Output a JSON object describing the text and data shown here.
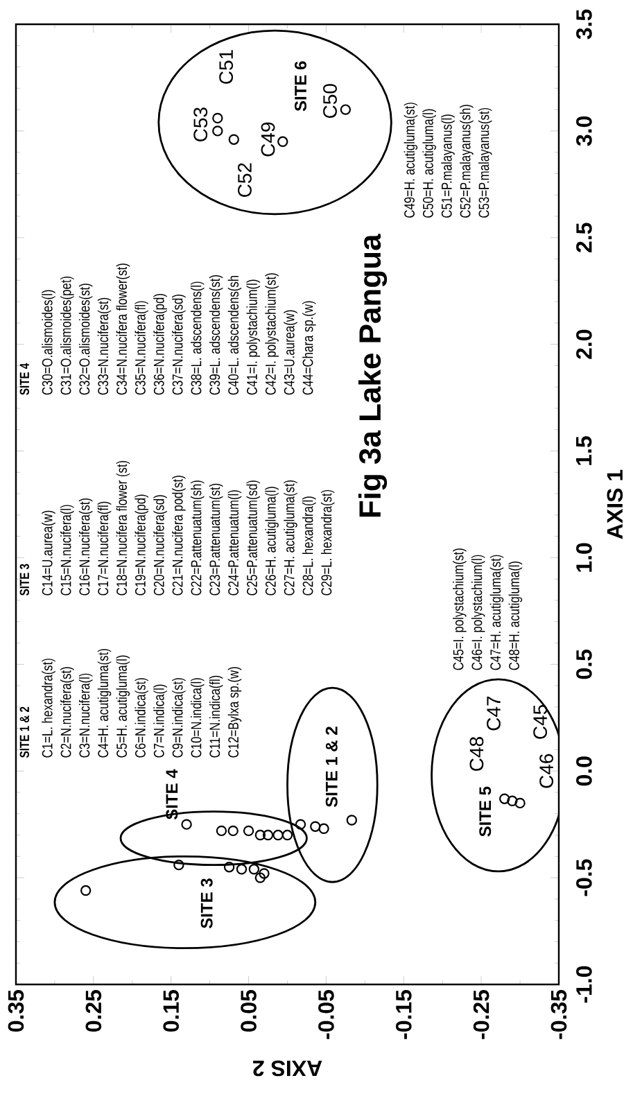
{
  "chart_data": {
    "type": "scatter",
    "title": "Fig 3a Lake Pangua",
    "xlabel": "AXIS 2",
    "ylabel": "AXIS 1",
    "xlim": [
      0.35,
      -0.35
    ],
    "ylim": [
      -1.0,
      3.5
    ],
    "yticks": [
      {
        "value": -1.0,
        "label": "-1.0"
      },
      {
        "value": -0.5,
        "label": "-0.5"
      },
      {
        "value": 0.0,
        "label": "0.0"
      },
      {
        "value": 0.5,
        "label": "0.5"
      },
      {
        "value": 1.0,
        "label": "1.0"
      },
      {
        "value": 1.5,
        "label": "1.5"
      },
      {
        "value": 2.0,
        "label": "2.0"
      },
      {
        "value": 2.5,
        "label": "2.5"
      },
      {
        "value": 3.0,
        "label": "3.0"
      },
      {
        "value": 3.5,
        "label": "3.5"
      }
    ],
    "xticks": [
      0.35,
      0.25,
      0.15,
      0.05,
      -0.05,
      -0.15,
      -0.25,
      -0.35
    ],
    "marker": "circle",
    "series": [
      {
        "color": "#000000",
        "values": [
          -0.56,
          -0.44,
          -0.25,
          -0.28,
          -0.28,
          -0.28,
          -0.3,
          -0.3,
          -0.3,
          -0.3,
          -0.25,
          -0.26,
          -0.27,
          -0.23,
          -0.45,
          -0.46,
          -0.46,
          -0.48,
          -0.5,
          -0.13,
          -0.14,
          -0.15,
          3.06,
          3.0,
          2.96,
          2.95,
          3.1
        ],
        "x": [
          0.26,
          0.14,
          0.13,
          0.085,
          0.07,
          0.05,
          0.035,
          0.025,
          0.012,
          0.0,
          -0.017,
          -0.036,
          -0.047,
          -0.083,
          0.075,
          0.059,
          0.043,
          0.03,
          0.035,
          -0.28,
          -0.29,
          -0.3,
          0.09,
          0.09,
          0.069,
          0.006,
          -0.075
        ]
      }
    ],
    "annotations": [
      "SITE 1 & 2",
      "C1=L. hexandra(st)",
      "C2=N.nucifera(st)",
      "C3=N.nucifera(l)",
      "C4=H. acutigluma(st)",
      "C5=H. acutigluma(l)",
      "C6=N.indica(st)",
      "C7=N.indica(l)",
      "C9=N.indica(st)",
      "C10=N.indica(l)",
      "C11=N.indica(fl)",
      "C12=Bylxa sp.(w)",
      "SITE 3",
      "C14=U.aurea(w)",
      "C15=N.nucifera(l)",
      "C16=N.nucifera(st)",
      "C17=N.nucifera(fl)",
      "C18=N.nucifera flower (st)",
      "C19=N.nucifera(pd)",
      "C20=N.nucifera(sd)",
      "C21=N.nucifera pod(st)",
      "C22=P.attenuatum(sh)",
      "C23=P.attenuatum(st)",
      "C24=P.attenuatum(l)",
      "C25=P.attenuatum(sd)",
      "C26=H. acutigluma(l)",
      "C27=H. acutigluma(st)",
      "C28=L. hexandra(l)",
      "C29=L. hexandra(st)",
      "SITE 4",
      "C30=O.alismoides(l)",
      "C31=O.alismoides(pet)",
      "C32=O.alismoides(st)",
      "C33=N.nucifera(st)",
      "C34=N.nucifera flower(st)",
      "C35=N.nucifera(fl)",
      "C36=N.nucifera(pd)",
      "C37=N.nucifera(sd)",
      "C38=L. adscendens(l)",
      "C39=L. adscendens(st)",
      "C40=L. adscendens(sh",
      "C41=I. polystachium(l)",
      "C42=I. polystachium(st)",
      "C43=U.aurea(w)",
      "C44=Chara sp.(w)",
      "C45=I. polystachium(st)",
      "C46=I. polystachium(l)",
      "C47=H. acutigluma(st)",
      "C48=H. acutigluma(l)",
      "C49=H. acutigluma(st)",
      "C50=H. acutigluma(l)",
      "C51=P.malayanus(l)",
      "C52=P.malayanus(sh)",
      "C53=P.malayanus(st)",
      "SITE 3",
      "SITE 4",
      "SITE 1 & 2",
      "SITE 5",
      "SITE 6",
      "C53",
      "C52",
      "C49",
      "C50",
      "C51",
      "C48",
      "C46",
      "C47",
      "C45"
    ]
  }
}
